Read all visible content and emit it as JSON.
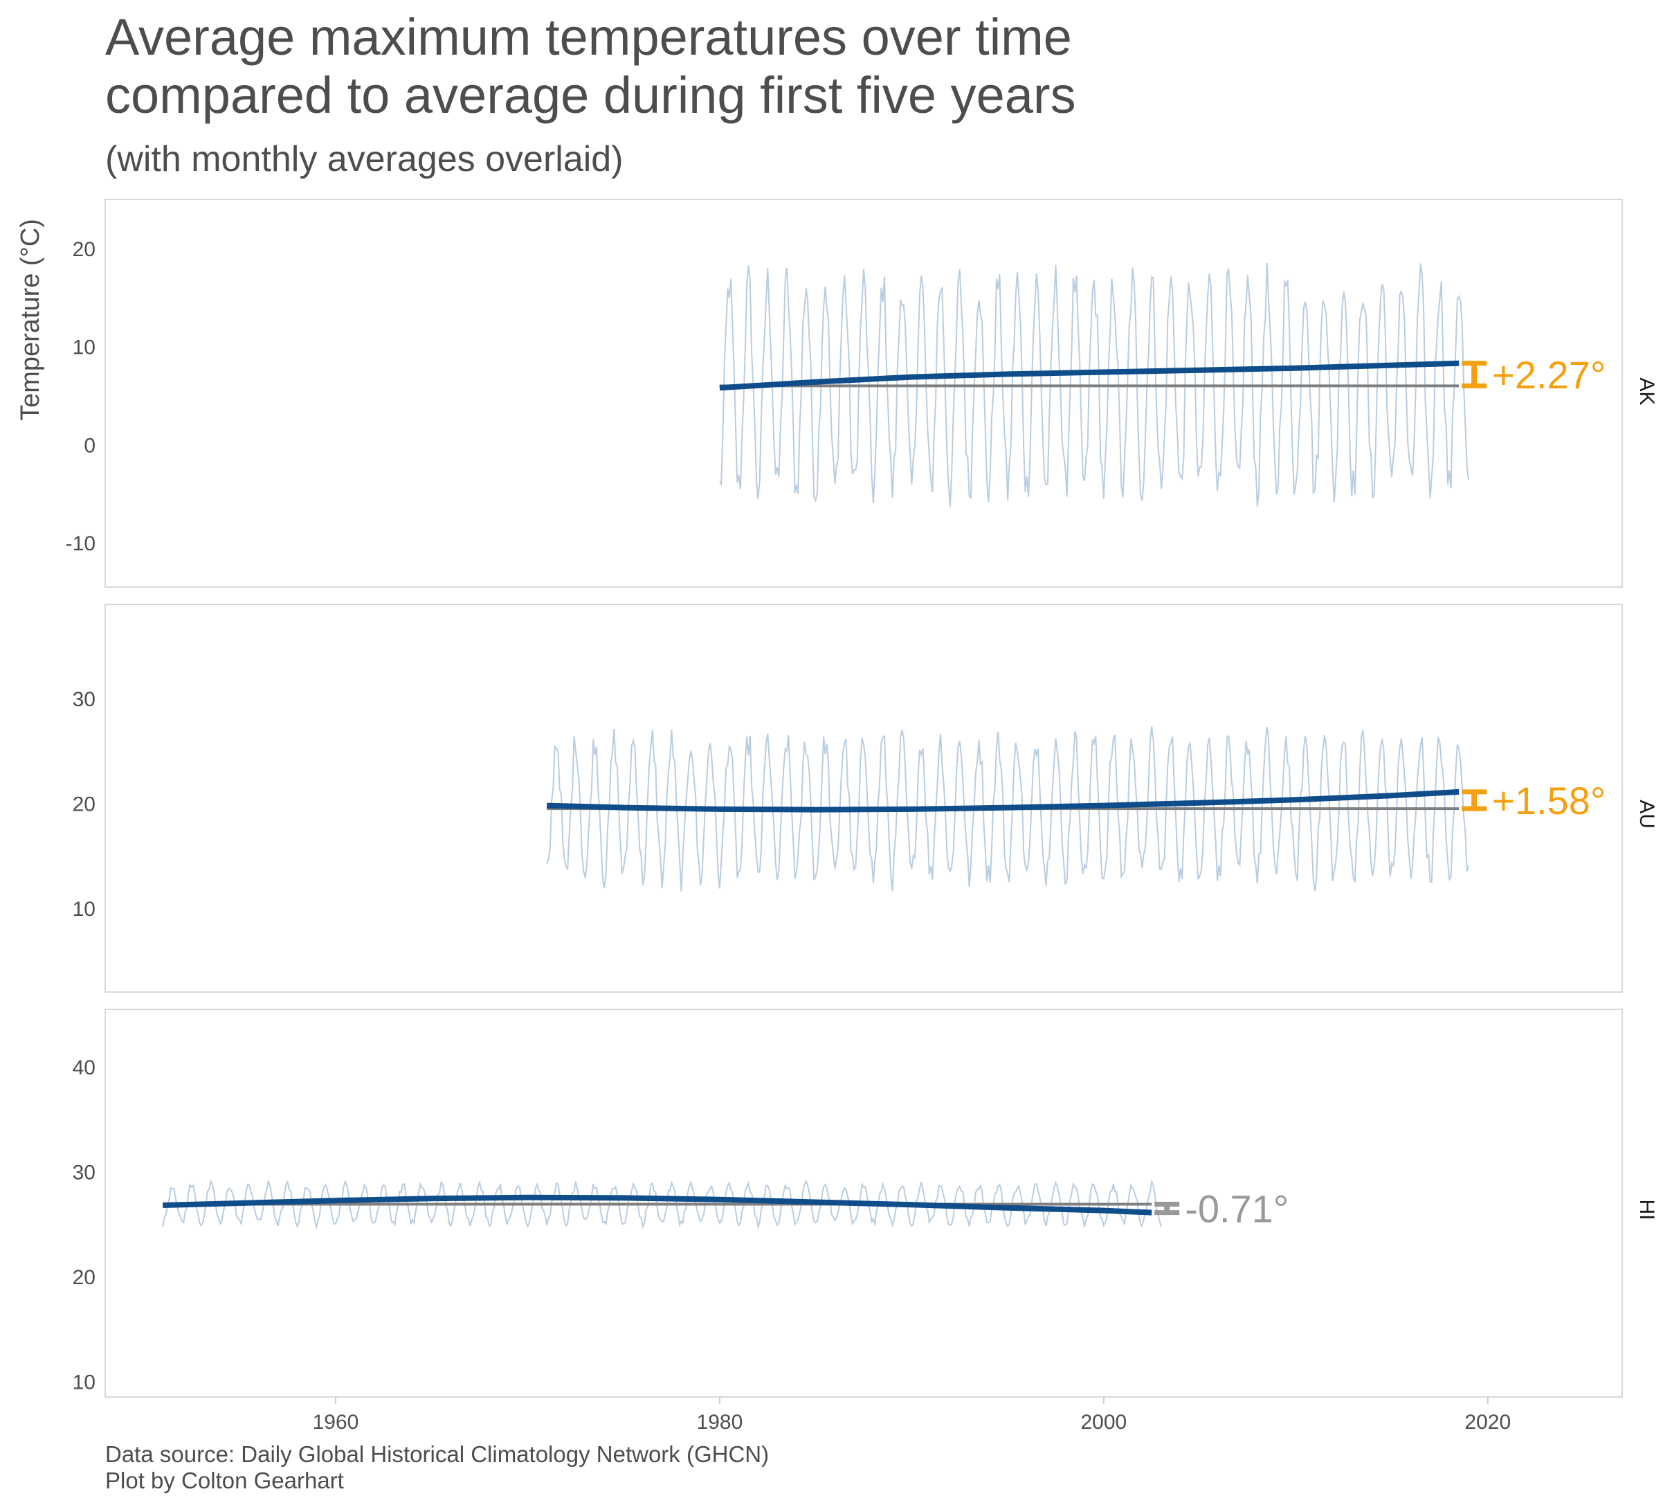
{
  "title_line1": "Average maximum temperatures over time",
  "title_line2": "compared to average during first five years",
  "subtitle": "(with monthly averages overlaid)",
  "caption_line1": "Data source: Daily Global Historical Climatology Network (GHCN)",
  "caption_line2": "Plot by Colton Gearhart",
  "colors": {
    "monthly": "#b9cde0",
    "trend": "#0f4c8a",
    "baseline": "#808080",
    "increase": "#f5a00f",
    "decrease": "#999999",
    "panel_border": "#d9d9d9",
    "text": "#4d4d4d"
  },
  "chart_data": {
    "type": "line",
    "facets": "rows",
    "ylabel": "Temperature (°C)",
    "x_ticks": [
      "1960",
      "1980",
      "2000",
      "2020"
    ],
    "xlim": [
      1948,
      2027
    ],
    "panels": [
      {
        "name": "AK",
        "ylim": [
          -14.5,
          25
        ],
        "y_ticks": [
          "-10",
          "0",
          "10",
          "20"
        ],
        "x_range": [
          1980,
          2019
        ],
        "monthly_mean": 6.0,
        "monthly_amplitude": 10.5,
        "trend": [
          [
            1980,
            5.8
          ],
          [
            1985,
            6.4
          ],
          [
            1990,
            6.9
          ],
          [
            1995,
            7.2
          ],
          [
            2000,
            7.4
          ],
          [
            2005,
            7.6
          ],
          [
            2010,
            7.8
          ],
          [
            2015,
            8.1
          ],
          [
            2018.5,
            8.3
          ]
        ],
        "baseline": 6.0,
        "change_label": "+2.27°",
        "change_color": "increase"
      },
      {
        "name": "AU",
        "ylim": [
          2,
          39
        ],
        "y_ticks": [
          "10",
          "20",
          "30"
        ],
        "x_range": [
          1971,
          2019
        ],
        "monthly_mean": 19.5,
        "monthly_amplitude": 6.5,
        "trend": [
          [
            1971,
            19.8
          ],
          [
            1975,
            19.6
          ],
          [
            1980,
            19.45
          ],
          [
            1985,
            19.4
          ],
          [
            1990,
            19.45
          ],
          [
            1995,
            19.6
          ],
          [
            2000,
            19.8
          ],
          [
            2005,
            20.05
          ],
          [
            2010,
            20.35
          ],
          [
            2015,
            20.75
          ],
          [
            2018.5,
            21.1
          ]
        ],
        "baseline": 19.5,
        "change_label": "+1.58°",
        "change_color": "increase"
      },
      {
        "name": "HI",
        "ylim": [
          8.5,
          45.5
        ],
        "y_ticks": [
          "10",
          "20",
          "30",
          "40"
        ],
        "x_range": [
          1951,
          2003
        ],
        "monthly_mean": 26.9,
        "monthly_amplitude": 1.8,
        "trend": [
          [
            1951,
            26.8
          ],
          [
            1955,
            27.0
          ],
          [
            1960,
            27.25
          ],
          [
            1965,
            27.45
          ],
          [
            1970,
            27.55
          ],
          [
            1975,
            27.5
          ],
          [
            1980,
            27.35
          ],
          [
            1985,
            27.1
          ],
          [
            1990,
            26.85
          ],
          [
            1995,
            26.55
          ],
          [
            2000,
            26.3
          ],
          [
            2002.5,
            26.1
          ]
        ],
        "baseline": 26.9,
        "change_label": "-0.71°",
        "change_color": "decrease"
      }
    ]
  }
}
